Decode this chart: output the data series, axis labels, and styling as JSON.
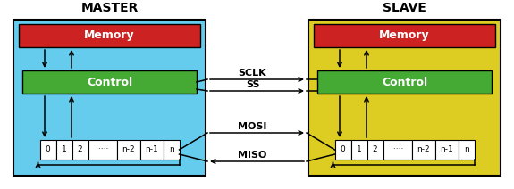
{
  "fig_width": 5.75,
  "fig_height": 2.12,
  "dpi": 100,
  "bg_color": "#ffffff",
  "master_bg": "#66ccee",
  "slave_bg": "#ddcc22",
  "memory_color": "#cc2222",
  "control_color": "#44aa33",
  "register_bg": "#ffffff",
  "register_border": "#000000",
  "text_color": "#000000",
  "master_label": "MASTER",
  "slave_label": "SLAVE",
  "memory_label": "Memory",
  "control_label": "Control",
  "signals": [
    "SCLK",
    "SS",
    "MOSI",
    "MISO"
  ],
  "register_cells": [
    "0",
    "1",
    "2",
    "·····",
    "n-2",
    "n-1",
    "n"
  ],
  "cell_widths": [
    18,
    18,
    18,
    32,
    26,
    26,
    18
  ],
  "arrow_color": "#000000"
}
